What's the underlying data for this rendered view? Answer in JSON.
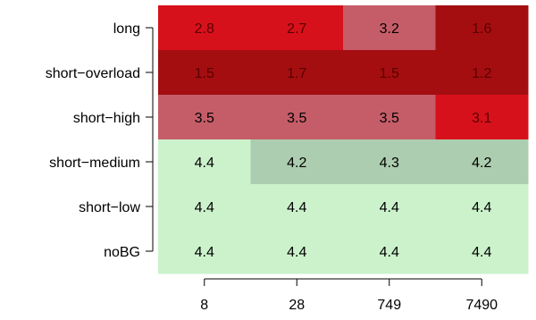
{
  "chart_data": {
    "type": "heatmap",
    "title": "",
    "xlabel": "",
    "ylabel": "",
    "x_categories": [
      "8",
      "28",
      "749",
      "7490"
    ],
    "y_categories": [
      "long",
      "short−overload",
      "short−high",
      "short−medium",
      "short−low",
      "noBG"
    ],
    "values": [
      [
        2.8,
        2.7,
        3.2,
        1.6
      ],
      [
        1.5,
        1.7,
        1.5,
        1.2
      ],
      [
        3.5,
        3.5,
        3.5,
        3.1
      ],
      [
        4.4,
        4.2,
        4.3,
        4.2
      ],
      [
        4.4,
        4.4,
        4.4,
        4.4
      ],
      [
        4.4,
        4.4,
        4.4,
        4.4
      ]
    ],
    "colors": [
      [
        "#d7111b",
        "#d7111b",
        "#c55d68",
        "#a40e10"
      ],
      [
        "#a40e10",
        "#a40e10",
        "#a40e10",
        "#a40e10"
      ],
      [
        "#c55d68",
        "#c55d68",
        "#c55d68",
        "#d7111b"
      ],
      [
        "#ccf2cc",
        "#accdaf",
        "#accdaf",
        "#accdaf"
      ],
      [
        "#ccf2cc",
        "#ccf2cc",
        "#ccf2cc",
        "#ccf2cc"
      ],
      [
        "#ccf2cc",
        "#ccf2cc",
        "#ccf2cc",
        "#ccf2cc"
      ]
    ],
    "grid": false,
    "legend": "none"
  }
}
